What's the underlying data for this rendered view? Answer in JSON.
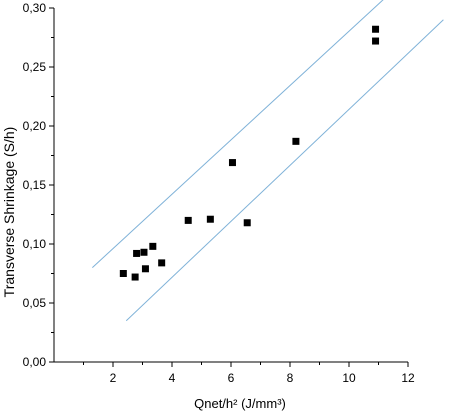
{
  "chart_data": {
    "type": "scatter",
    "title": "",
    "xlabel": "Qnet/h² (J/mm³)",
    "ylabel": "Transverse Shrinkage (S/h)",
    "xlim": [
      0,
      12
    ],
    "ylim": [
      0,
      0.3
    ],
    "x_tick_labels": [
      "2",
      "4",
      "6",
      "8",
      "10",
      "12"
    ],
    "x_tick_values": [
      2,
      4,
      6,
      8,
      10,
      12
    ],
    "y_tick_labels": [
      "0,00",
      "0,05",
      "0,10",
      "0,15",
      "0,20",
      "0,25",
      "0,30"
    ],
    "y_tick_values": [
      0,
      0.05,
      0.1,
      0.15,
      0.2,
      0.25,
      0.3
    ],
    "grid": false,
    "series": [
      {
        "marker": "square",
        "color": "#000000",
        "points": [
          {
            "x": 2.35,
            "y": 0.075
          },
          {
            "x": 2.75,
            "y": 0.072
          },
          {
            "x": 2.8,
            "y": 0.092
          },
          {
            "x": 3.05,
            "y": 0.093
          },
          {
            "x": 3.1,
            "y": 0.079
          },
          {
            "x": 3.35,
            "y": 0.098
          },
          {
            "x": 3.65,
            "y": 0.084
          },
          {
            "x": 4.55,
            "y": 0.12
          },
          {
            "x": 5.3,
            "y": 0.121
          },
          {
            "x": 6.05,
            "y": 0.169
          },
          {
            "x": 6.55,
            "y": 0.118
          },
          {
            "x": 8.2,
            "y": 0.187
          },
          {
            "x": 10.9,
            "y": 0.282
          },
          {
            "x": 10.9,
            "y": 0.272
          }
        ]
      }
    ],
    "bound_lines": [
      {
        "color": "#7fb2d8",
        "from": {
          "x": 1.3,
          "y": 0.08
        },
        "to": {
          "x": 12.2,
          "y": 0.331
        }
      },
      {
        "color": "#7fb2d8",
        "from": {
          "x": 2.45,
          "y": 0.035
        },
        "to": {
          "x": 13.2,
          "y": 0.29
        }
      }
    ]
  }
}
